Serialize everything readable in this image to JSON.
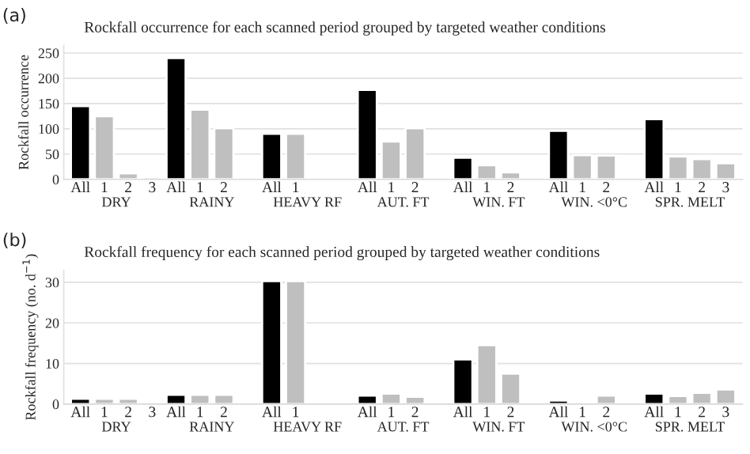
{
  "chart_data": [
    {
      "type": "bar",
      "title": "Rockfall occurrence for each scanned period grouped by targeted weather conditions",
      "ylabel": "Rockfall occurrence",
      "categories": [
        "All",
        "1",
        "2",
        "3",
        "All",
        "1",
        "2",
        null,
        "All",
        "1",
        null,
        null,
        "All",
        "1",
        "2",
        null,
        "All",
        "1",
        "2",
        null,
        "All",
        "1",
        "2",
        null,
        "All",
        "1",
        "2",
        "3"
      ],
      "values": [
        145,
        125,
        12,
        5,
        240,
        138,
        101,
        null,
        90,
        90,
        null,
        null,
        177,
        75,
        101,
        null,
        43,
        28,
        14,
        null,
        96,
        48,
        47,
        null,
        119,
        45,
        40,
        32
      ],
      "colors": [
        "#000000",
        "#bfbfbf",
        "#bfbfbf",
        "#bfbfbf",
        "#000000",
        "#bfbfbf",
        "#bfbfbf",
        null,
        "#000000",
        "#bfbfbf",
        null,
        null,
        "#000000",
        "#bfbfbf",
        "#bfbfbf",
        null,
        "#000000",
        "#bfbfbf",
        "#bfbfbf",
        null,
        "#000000",
        "#bfbfbf",
        "#bfbfbf",
        null,
        "#000000",
        "#bfbfbf",
        "#bfbfbf",
        "#bfbfbf"
      ],
      "ylim": [
        0,
        265
      ],
      "yticks": [
        0,
        50,
        100,
        150,
        200,
        250
      ],
      "grid": "y",
      "annotations": [
        "(a)",
        "DRY",
        "RAINY",
        "HEAVY RF",
        "AUT. FT",
        "WIN. FT",
        "WIN. <0°C",
        "SPR. MELT"
      ]
    },
    {
      "type": "bar",
      "title": "Rockfall frequency for each scanned period grouped by targeted weather conditions",
      "ylabel": "Rockfall frequency (no. d$^{−1}$)",
      "categories": [
        "All",
        "1",
        "2",
        "3",
        "All",
        "1",
        "2",
        null,
        "All",
        "1",
        null,
        null,
        "All",
        "1",
        "2",
        null,
        "All",
        "1",
        "2",
        null,
        "All",
        "1",
        "2",
        null,
        "All",
        "1",
        "2",
        "3"
      ],
      "values": [
        1.3,
        1.3,
        1.3,
        0.5,
        2.3,
        2.3,
        2.3,
        null,
        30.3,
        30.3,
        null,
        null,
        2.1,
        2.6,
        1.8,
        null,
        11,
        14.5,
        7.5,
        null,
        0.9,
        0.5,
        2.1,
        null,
        2.6,
        2.0,
        2.8,
        3.6
      ],
      "colors": [
        "#000000",
        "#bfbfbf",
        "#bfbfbf",
        "#bfbfbf",
        "#000000",
        "#bfbfbf",
        "#bfbfbf",
        null,
        "#000000",
        "#bfbfbf",
        null,
        null,
        "#000000",
        "#bfbfbf",
        "#bfbfbf",
        null,
        "#000000",
        "#bfbfbf",
        "#bfbfbf",
        null,
        "#000000",
        "#bfbfbf",
        "#bfbfbf",
        null,
        "#000000",
        "#bfbfbf",
        "#bfbfbf",
        "#bfbfbf"
      ],
      "ylim": [
        0,
        33
      ],
      "yticks": [
        0,
        10,
        20,
        30
      ],
      "grid": "y",
      "annotations": [
        "(b)",
        "DRY",
        "RAINY",
        "HEAVY RF",
        "AUT. FT",
        "WIN. FT",
        "WIN. <0°C",
        "SPR. MELT"
      ]
    }
  ]
}
